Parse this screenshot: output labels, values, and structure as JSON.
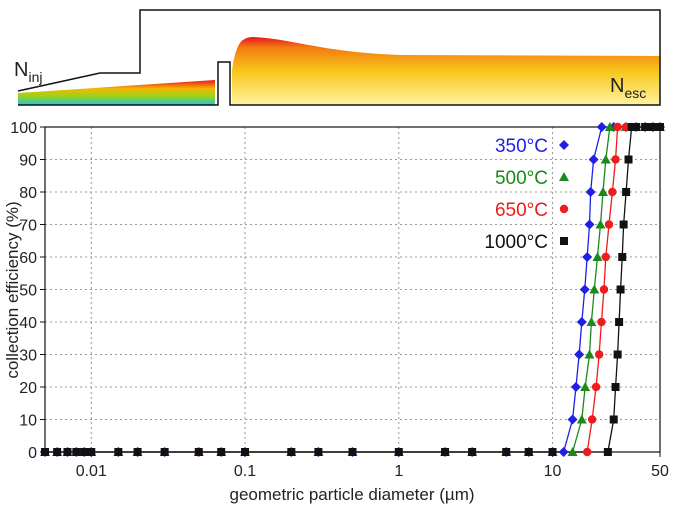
{
  "diagram": {
    "inlet_label": {
      "main": "N",
      "sub": "inj"
    },
    "outlet_label": {
      "main": "N",
      "sub": "esc"
    }
  },
  "chart_data": {
    "type": "line",
    "x_scale": "log",
    "grid": true,
    "xlabel": "geometric particle diameter (µm)",
    "ylabel": "collection efficiency (%)",
    "xlim": [
      0.005,
      50
    ],
    "ylim": [
      0,
      100
    ],
    "xticks": [
      0.01,
      0.1,
      1,
      10,
      50
    ],
    "yticks": [
      0,
      10,
      20,
      30,
      40,
      50,
      60,
      70,
      80,
      90,
      100
    ],
    "legend": "upper right",
    "series": [
      {
        "name": "350°C",
        "color": "#1f1fe6",
        "marker": "diamond",
        "x": [
          0.005,
          0.006,
          0.007,
          0.008,
          0.009,
          0.01,
          0.015,
          0.02,
          0.03,
          0.05,
          0.07,
          0.1,
          0.2,
          0.3,
          0.5,
          1,
          2,
          3,
          5,
          7,
          10,
          11.8,
          13.5,
          14.2,
          14.9,
          15.5,
          16.2,
          16.8,
          17.4,
          17.7,
          18.5,
          20.9,
          25,
          30,
          35,
          40,
          45,
          50
        ],
        "values": [
          0,
          0,
          0,
          0,
          0,
          0,
          0,
          0,
          0,
          0,
          0,
          0,
          0,
          0,
          0,
          0,
          0,
          0,
          0,
          0,
          0,
          0,
          10,
          20,
          30,
          40,
          50,
          60,
          70,
          80,
          90,
          100,
          100,
          100,
          100,
          100,
          100,
          100
        ]
      },
      {
        "name": "500°C",
        "color": "#1a8a1a",
        "marker": "triangle",
        "x": [
          0.005,
          0.006,
          0.007,
          0.008,
          0.009,
          0.01,
          0.015,
          0.02,
          0.03,
          0.05,
          0.07,
          0.1,
          0.2,
          0.3,
          0.5,
          1,
          2,
          3,
          5,
          7,
          10,
          13.5,
          15.5,
          16.3,
          17.4,
          17.9,
          18.7,
          19.6,
          20.5,
          21.3,
          22.2,
          23.6,
          30,
          35,
          40,
          45,
          50
        ],
        "values": [
          0,
          0,
          0,
          0,
          0,
          0,
          0,
          0,
          0,
          0,
          0,
          0,
          0,
          0,
          0,
          0,
          0,
          0,
          0,
          0,
          0,
          0,
          10,
          20,
          30,
          40,
          50,
          60,
          70,
          80,
          90,
          100,
          100,
          100,
          100,
          100,
          100
        ]
      },
      {
        "name": "650°C",
        "color": "#ee1c1c",
        "marker": "circle",
        "x": [
          0.005,
          0.006,
          0.007,
          0.008,
          0.009,
          0.01,
          0.015,
          0.02,
          0.03,
          0.05,
          0.07,
          0.1,
          0.2,
          0.3,
          0.5,
          1,
          2,
          3,
          5,
          7,
          10,
          16.8,
          18.1,
          19.2,
          20.1,
          20.8,
          21.6,
          22.2,
          23.3,
          24.5,
          25.7,
          26.5,
          30,
          35,
          40,
          45,
          50
        ],
        "values": [
          0,
          0,
          0,
          0,
          0,
          0,
          0,
          0,
          0,
          0,
          0,
          0,
          0,
          0,
          0,
          0,
          0,
          0,
          0,
          0,
          0,
          0,
          10,
          20,
          30,
          40,
          50,
          60,
          70,
          80,
          90,
          100,
          100,
          100,
          100,
          100,
          100
        ]
      },
      {
        "name": "1000°C",
        "color": "#111111",
        "marker": "square",
        "x": [
          0.005,
          0.006,
          0.007,
          0.008,
          0.009,
          0.01,
          0.015,
          0.02,
          0.03,
          0.05,
          0.07,
          0.1,
          0.2,
          0.3,
          0.5,
          1,
          2,
          3,
          5,
          7,
          10,
          22.9,
          25.0,
          25.7,
          26.5,
          27.1,
          27.7,
          28.4,
          29.0,
          30.1,
          31.2,
          32.7,
          35,
          40,
          45,
          50
        ],
        "values": [
          0,
          0,
          0,
          0,
          0,
          0,
          0,
          0,
          0,
          0,
          0,
          0,
          0,
          0,
          0,
          0,
          0,
          0,
          0,
          0,
          0,
          0,
          10,
          20,
          30,
          40,
          50,
          60,
          70,
          80,
          90,
          100,
          100,
          100,
          100,
          100
        ]
      }
    ]
  }
}
